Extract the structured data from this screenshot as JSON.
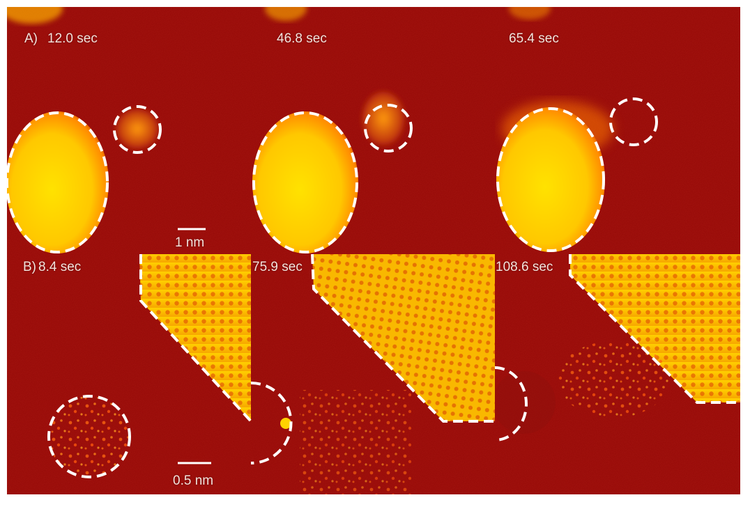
{
  "figure": {
    "row_a": {
      "panel_label": "A)",
      "frames": [
        {
          "time": "12.0 sec"
        },
        {
          "time": "46.8 sec"
        },
        {
          "time": "65.4 sec"
        }
      ],
      "scale_bar_label": "1 nm"
    },
    "row_b": {
      "panel_label": "B)",
      "frames": [
        {
          "time": "8.4 sec"
        },
        {
          "time": "75.9 sec"
        },
        {
          "time": "108.6 sec"
        }
      ],
      "scale_bar_label": "0.5 nm"
    },
    "colors": {
      "background_red": "#a3140f",
      "particle_yellow": "#ffd400",
      "particle_orange": "#ff8a00",
      "outline_white": "#ffffff"
    }
  }
}
